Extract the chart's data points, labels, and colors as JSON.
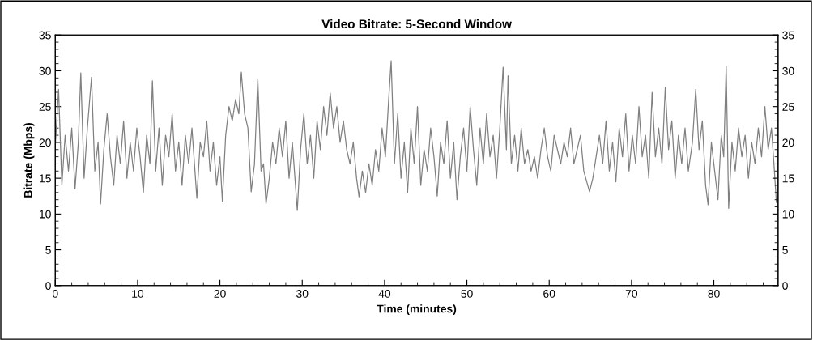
{
  "chart_data": {
    "type": "line",
    "title": "Video Bitrate: 5-Second Window",
    "xlabel": "Time (minutes)",
    "ylabel": "Bitrate (Mbps)",
    "xlim": [
      0,
      87.8
    ],
    "xticks": [
      0,
      10,
      20,
      30,
      40,
      50,
      60,
      70,
      80
    ],
    "ylim": [
      0,
      35
    ],
    "yticks": [
      0,
      5,
      10,
      15,
      20,
      25,
      30,
      35
    ],
    "y2lim": [
      0,
      35
    ],
    "y2ticks": [
      0,
      5,
      10,
      15,
      20,
      25,
      30,
      35
    ],
    "grid": false,
    "marker": "none",
    "line_style": "solid",
    "series": [
      {
        "color": "#808080",
        "x": [
          0,
          0.4,
          0.8,
          1.2,
          1.6,
          2.0,
          2.4,
          2.8,
          3.1,
          3.5,
          3.9,
          4.4,
          4.8,
          5.2,
          5.5,
          5.9,
          6.3,
          6.7,
          7.1,
          7.5,
          7.9,
          8.3,
          8.7,
          9.1,
          9.5,
          9.9,
          10.3,
          10.7,
          11.1,
          11.5,
          11.8,
          12.2,
          12.6,
          13.0,
          13.4,
          13.8,
          14.2,
          14.6,
          15.0,
          15.4,
          15.8,
          16.2,
          16.6,
          17.2,
          17.6,
          18.0,
          18.4,
          18.8,
          19.2,
          19.6,
          20.0,
          20.3,
          20.7,
          21.1,
          21.5,
          21.9,
          22.3,
          22.6,
          23.0,
          23.4,
          23.8,
          24.2,
          24.6,
          25.0,
          25.3,
          25.6,
          26.0,
          26.4,
          26.8,
          27.2,
          27.6,
          28.0,
          28.4,
          28.8,
          29.4,
          29.8,
          30.2,
          30.6,
          31.0,
          31.4,
          31.8,
          32.2,
          32.6,
          33.0,
          33.4,
          33.8,
          34.2,
          34.6,
          35.0,
          35.4,
          35.8,
          36.2,
          36.6,
          36.9,
          37.3,
          37.7,
          38.1,
          38.5,
          38.9,
          39.3,
          39.7,
          40.1,
          40.5,
          40.8,
          41.2,
          41.6,
          42.0,
          42.4,
          42.8,
          43.2,
          43.6,
          44.0,
          44.4,
          44.8,
          45.2,
          45.6,
          46.0,
          46.4,
          46.8,
          47.2,
          47.6,
          48.0,
          48.4,
          48.8,
          49.2,
          49.6,
          50.0,
          50.4,
          50.8,
          51.2,
          51.6,
          52.0,
          52.4,
          52.8,
          53.2,
          53.6,
          54.0,
          54.4,
          54.8,
          55.0,
          55.4,
          55.8,
          56.2,
          56.6,
          57.0,
          57.4,
          57.8,
          58.2,
          58.6,
          59.0,
          59.4,
          59.8,
          60.2,
          60.6,
          61.0,
          61.4,
          61.8,
          62.2,
          62.6,
          63.0,
          63.4,
          63.8,
          64.2,
          64.9,
          65.3,
          65.7,
          66.1,
          66.5,
          66.9,
          67.3,
          67.7,
          68.1,
          68.5,
          68.9,
          69.3,
          69.7,
          70.1,
          70.5,
          70.9,
          71.3,
          71.7,
          72.1,
          72.5,
          72.9,
          73.3,
          73.7,
          74.1,
          74.5,
          74.9,
          75.3,
          75.7,
          76.1,
          76.5,
          76.9,
          77.4,
          77.8,
          78.2,
          78.6,
          79.0,
          79.3,
          79.7,
          80.1,
          80.5,
          80.9,
          81.2,
          81.5,
          81.8,
          82.2,
          82.6,
          83.0,
          83.4,
          83.8,
          84.2,
          84.6,
          85.0,
          85.4,
          85.8,
          86.2,
          86.6,
          87.0,
          87.3,
          87.6
        ],
        "values": [
          19.5,
          27.4,
          14,
          21,
          16,
          22,
          13.5,
          20,
          29.7,
          15,
          22,
          29.1,
          16,
          20,
          11.4,
          19,
          24,
          18,
          14,
          21,
          17,
          23,
          15,
          20,
          16,
          22,
          18,
          13,
          21,
          17,
          28.6,
          16,
          22,
          14,
          21,
          18,
          24,
          16,
          20,
          14,
          21,
          17,
          22,
          12.2,
          20,
          18,
          23,
          16,
          20,
          14,
          18,
          11.8,
          21,
          25,
          23,
          26,
          24,
          29.8,
          24,
          22,
          13.1,
          17,
          28.9,
          16,
          17,
          11.4,
          15,
          20,
          17,
          22,
          18,
          23,
          15,
          20,
          10.5,
          19,
          24,
          17,
          21,
          15,
          23,
          19,
          25,
          21,
          26.9,
          22,
          25,
          20,
          23,
          19,
          17,
          20,
          15,
          12.4,
          16,
          13,
          17,
          14,
          19,
          16,
          22,
          18,
          26,
          31.4,
          17,
          24,
          15,
          20,
          13,
          22,
          17,
          25,
          14,
          19,
          16,
          22,
          18,
          12.5,
          20,
          17,
          23,
          15,
          20,
          12,
          18,
          22,
          16,
          25,
          19,
          14,
          22,
          17,
          24,
          18,
          21,
          15,
          22,
          30.5,
          19,
          29.3,
          17,
          21,
          16,
          22,
          17,
          19,
          16,
          18,
          15,
          19,
          22,
          18,
          16,
          21,
          19,
          17,
          20,
          18,
          22,
          17,
          19,
          21,
          16,
          13.1,
          15,
          18,
          21,
          17,
          23,
          16,
          20,
          14.5,
          22,
          18,
          24,
          16,
          21,
          17,
          25,
          18,
          21,
          15,
          27,
          18,
          22,
          17,
          27.7,
          19,
          23,
          15,
          21,
          17,
          22,
          16,
          20,
          27.4,
          19,
          23,
          14,
          11.3,
          20,
          16,
          12,
          21,
          18,
          30.6,
          10.8,
          20,
          16,
          22,
          18,
          21,
          15,
          20,
          17,
          22,
          18,
          25,
          19,
          22,
          17,
          11.6
        ]
      }
    ]
  }
}
